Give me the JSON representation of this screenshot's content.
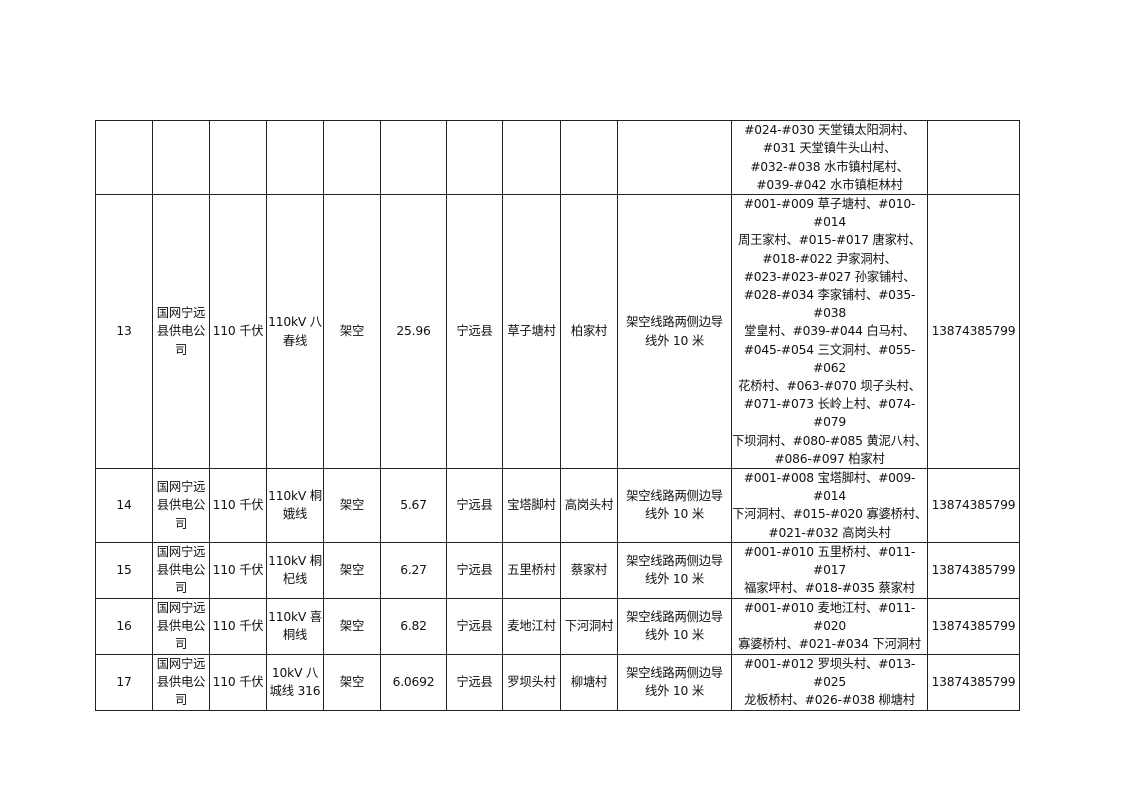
{
  "rows": [
    {
      "no": "",
      "company": "",
      "voltage": "",
      "line": "",
      "type": "",
      "length": "",
      "county": "",
      "town": "",
      "village": "",
      "range": "",
      "towers": "#024-#030 天堂镇太阳洞村、\n#031 天堂镇牛头山村、\n#032-#038 水市镇村尾村、\n#039-#042 水市镇柜林村",
      "phone": ""
    },
    {
      "no": "13",
      "company": "国网宁远\n县供电公\n司",
      "voltage": "110 千伏",
      "line": "110kV 八\n春线",
      "type": "架空",
      "length": "25.96",
      "county": "宁远县",
      "town": "草子塘村",
      "village": "柏家村",
      "range": "架空线路两侧边导\n线外 10 米",
      "towers": "#001-#009 草子塘村、#010-#014\n周王家村、#015-#017 唐家村、\n#018-#022 尹家洞村、\n#023-#023-#027 孙家铺村、\n#028-#034 李家铺村、#035-#038\n堂皇村、#039-#044 白马村、\n#045-#054 三文洞村、#055-#062\n花桥村、#063-#070 坝子头村、\n#071-#073 长岭上村、#074-#079\n下坝洞村、#080-#085 黄泥八村、\n#086-#097 柏家村",
      "phone": "13874385799"
    },
    {
      "no": "14",
      "company": "国网宁远\n县供电公\n司",
      "voltage": "110 千伏",
      "line": "110kV 桐\n娥线",
      "type": "架空",
      "length": "5.67",
      "county": "宁远县",
      "town": "宝塔脚村",
      "village": "高岗头村",
      "range": "架空线路两侧边导\n线外 10 米",
      "towers": "#001-#008 宝塔脚村、#009-#014\n下河洞村、#015-#020 寡婆桥村、\n#021-#032 高岗头村",
      "phone": "13874385799"
    },
    {
      "no": "15",
      "company": "国网宁远\n县供电公\n司",
      "voltage": "110 千伏",
      "line": "110kV 桐\n杞线",
      "type": "架空",
      "length": "6.27",
      "county": "宁远县",
      "town": "五里桥村",
      "village": "蔡家村",
      "range": "架空线路两侧边导\n线外 10 米",
      "towers": "#001-#010 五里桥村、#011-#017\n福家坪村、#018-#035 蔡家村",
      "phone": "13874385799"
    },
    {
      "no": "16",
      "company": "国网宁远\n县供电公\n司",
      "voltage": "110 千伏",
      "line": "110kV 喜\n桐线",
      "type": "架空",
      "length": "6.82",
      "county": "宁远县",
      "town": "麦地江村",
      "village": "下河洞村",
      "range": "架空线路两侧边导\n线外 10 米",
      "towers": "#001-#010 麦地江村、#011-#020\n寡婆桥村、#021-#034 下河洞村",
      "phone": "13874385799"
    },
    {
      "no": "17",
      "company": "国网宁远\n县供电公\n司",
      "voltage": "110 千伏",
      "line": "10kV 八\n城线 316",
      "type": "架空",
      "length": "6.0692",
      "county": "宁远县",
      "town": "罗坝头村",
      "village": "柳塘村",
      "range": "架空线路两侧边导\n线外 10 米",
      "towers": "#001-#012 罗坝头村、#013-#025\n龙板桥村、#026-#038 柳塘村",
      "phone": "13874385799"
    }
  ]
}
